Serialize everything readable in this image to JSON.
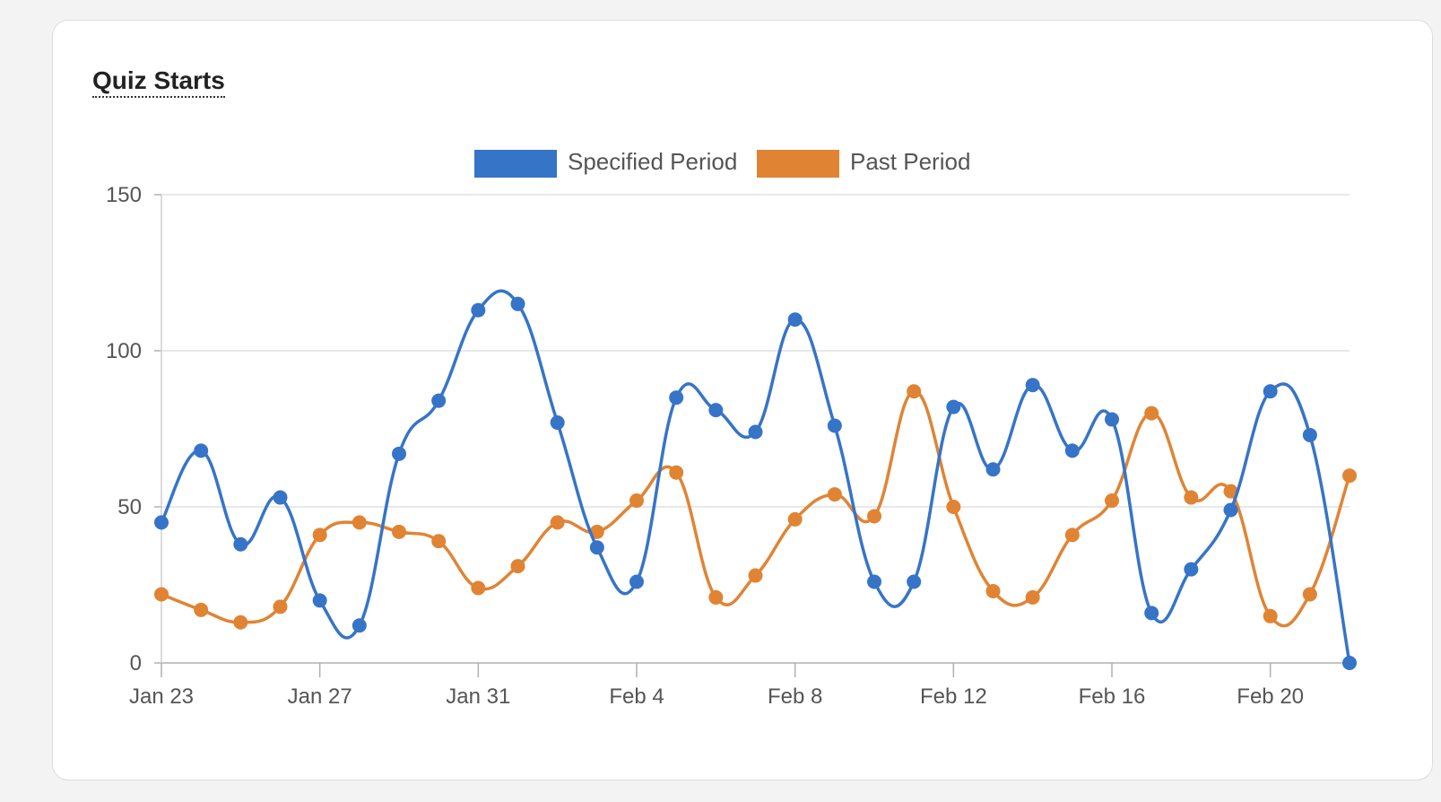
{
  "card": {
    "title": "Quiz Starts"
  },
  "chart_data": {
    "type": "line",
    "title": "Quiz Starts",
    "xlabel": "",
    "ylabel": "",
    "ylim": [
      0,
      150
    ],
    "yticks": [
      0,
      50,
      100,
      150
    ],
    "grid": true,
    "legend_position": "top-center",
    "x_tick_labels": [
      "Jan 23",
      "Jan 27",
      "Jan 31",
      "Feb 4",
      "Feb 8",
      "Feb 12",
      "Feb 16",
      "Feb 20"
    ],
    "x_tick_every": 4,
    "categories": [
      "Jan 23",
      "Jan 24",
      "Jan 25",
      "Jan 26",
      "Jan 27",
      "Jan 28",
      "Jan 29",
      "Jan 30",
      "Jan 31",
      "Feb 1",
      "Feb 2",
      "Feb 3",
      "Feb 4",
      "Feb 5",
      "Feb 6",
      "Feb 7",
      "Feb 8",
      "Feb 9",
      "Feb 10",
      "Feb 11",
      "Feb 12",
      "Feb 13",
      "Feb 14",
      "Feb 15",
      "Feb 16",
      "Feb 17",
      "Feb 18",
      "Feb 19",
      "Feb 20",
      "Feb 21",
      "Feb 22"
    ],
    "series": [
      {
        "name": "Specified Period",
        "color": "#3674c8",
        "values": [
          45,
          68,
          38,
          53,
          20,
          12,
          67,
          84,
          113,
          115,
          77,
          37,
          26,
          85,
          81,
          74,
          110,
          76,
          26,
          26,
          82,
          62,
          89,
          68,
          78,
          16,
          30,
          49,
          87,
          73,
          0
        ]
      },
      {
        "name": "Past Period",
        "color": "#e08434",
        "values": [
          22,
          17,
          13,
          18,
          41,
          45,
          42,
          39,
          24,
          31,
          45,
          42,
          52,
          61,
          21,
          28,
          46,
          54,
          47,
          87,
          50,
          23,
          21,
          41,
          52,
          80,
          53,
          55,
          15,
          22,
          60
        ]
      }
    ]
  }
}
